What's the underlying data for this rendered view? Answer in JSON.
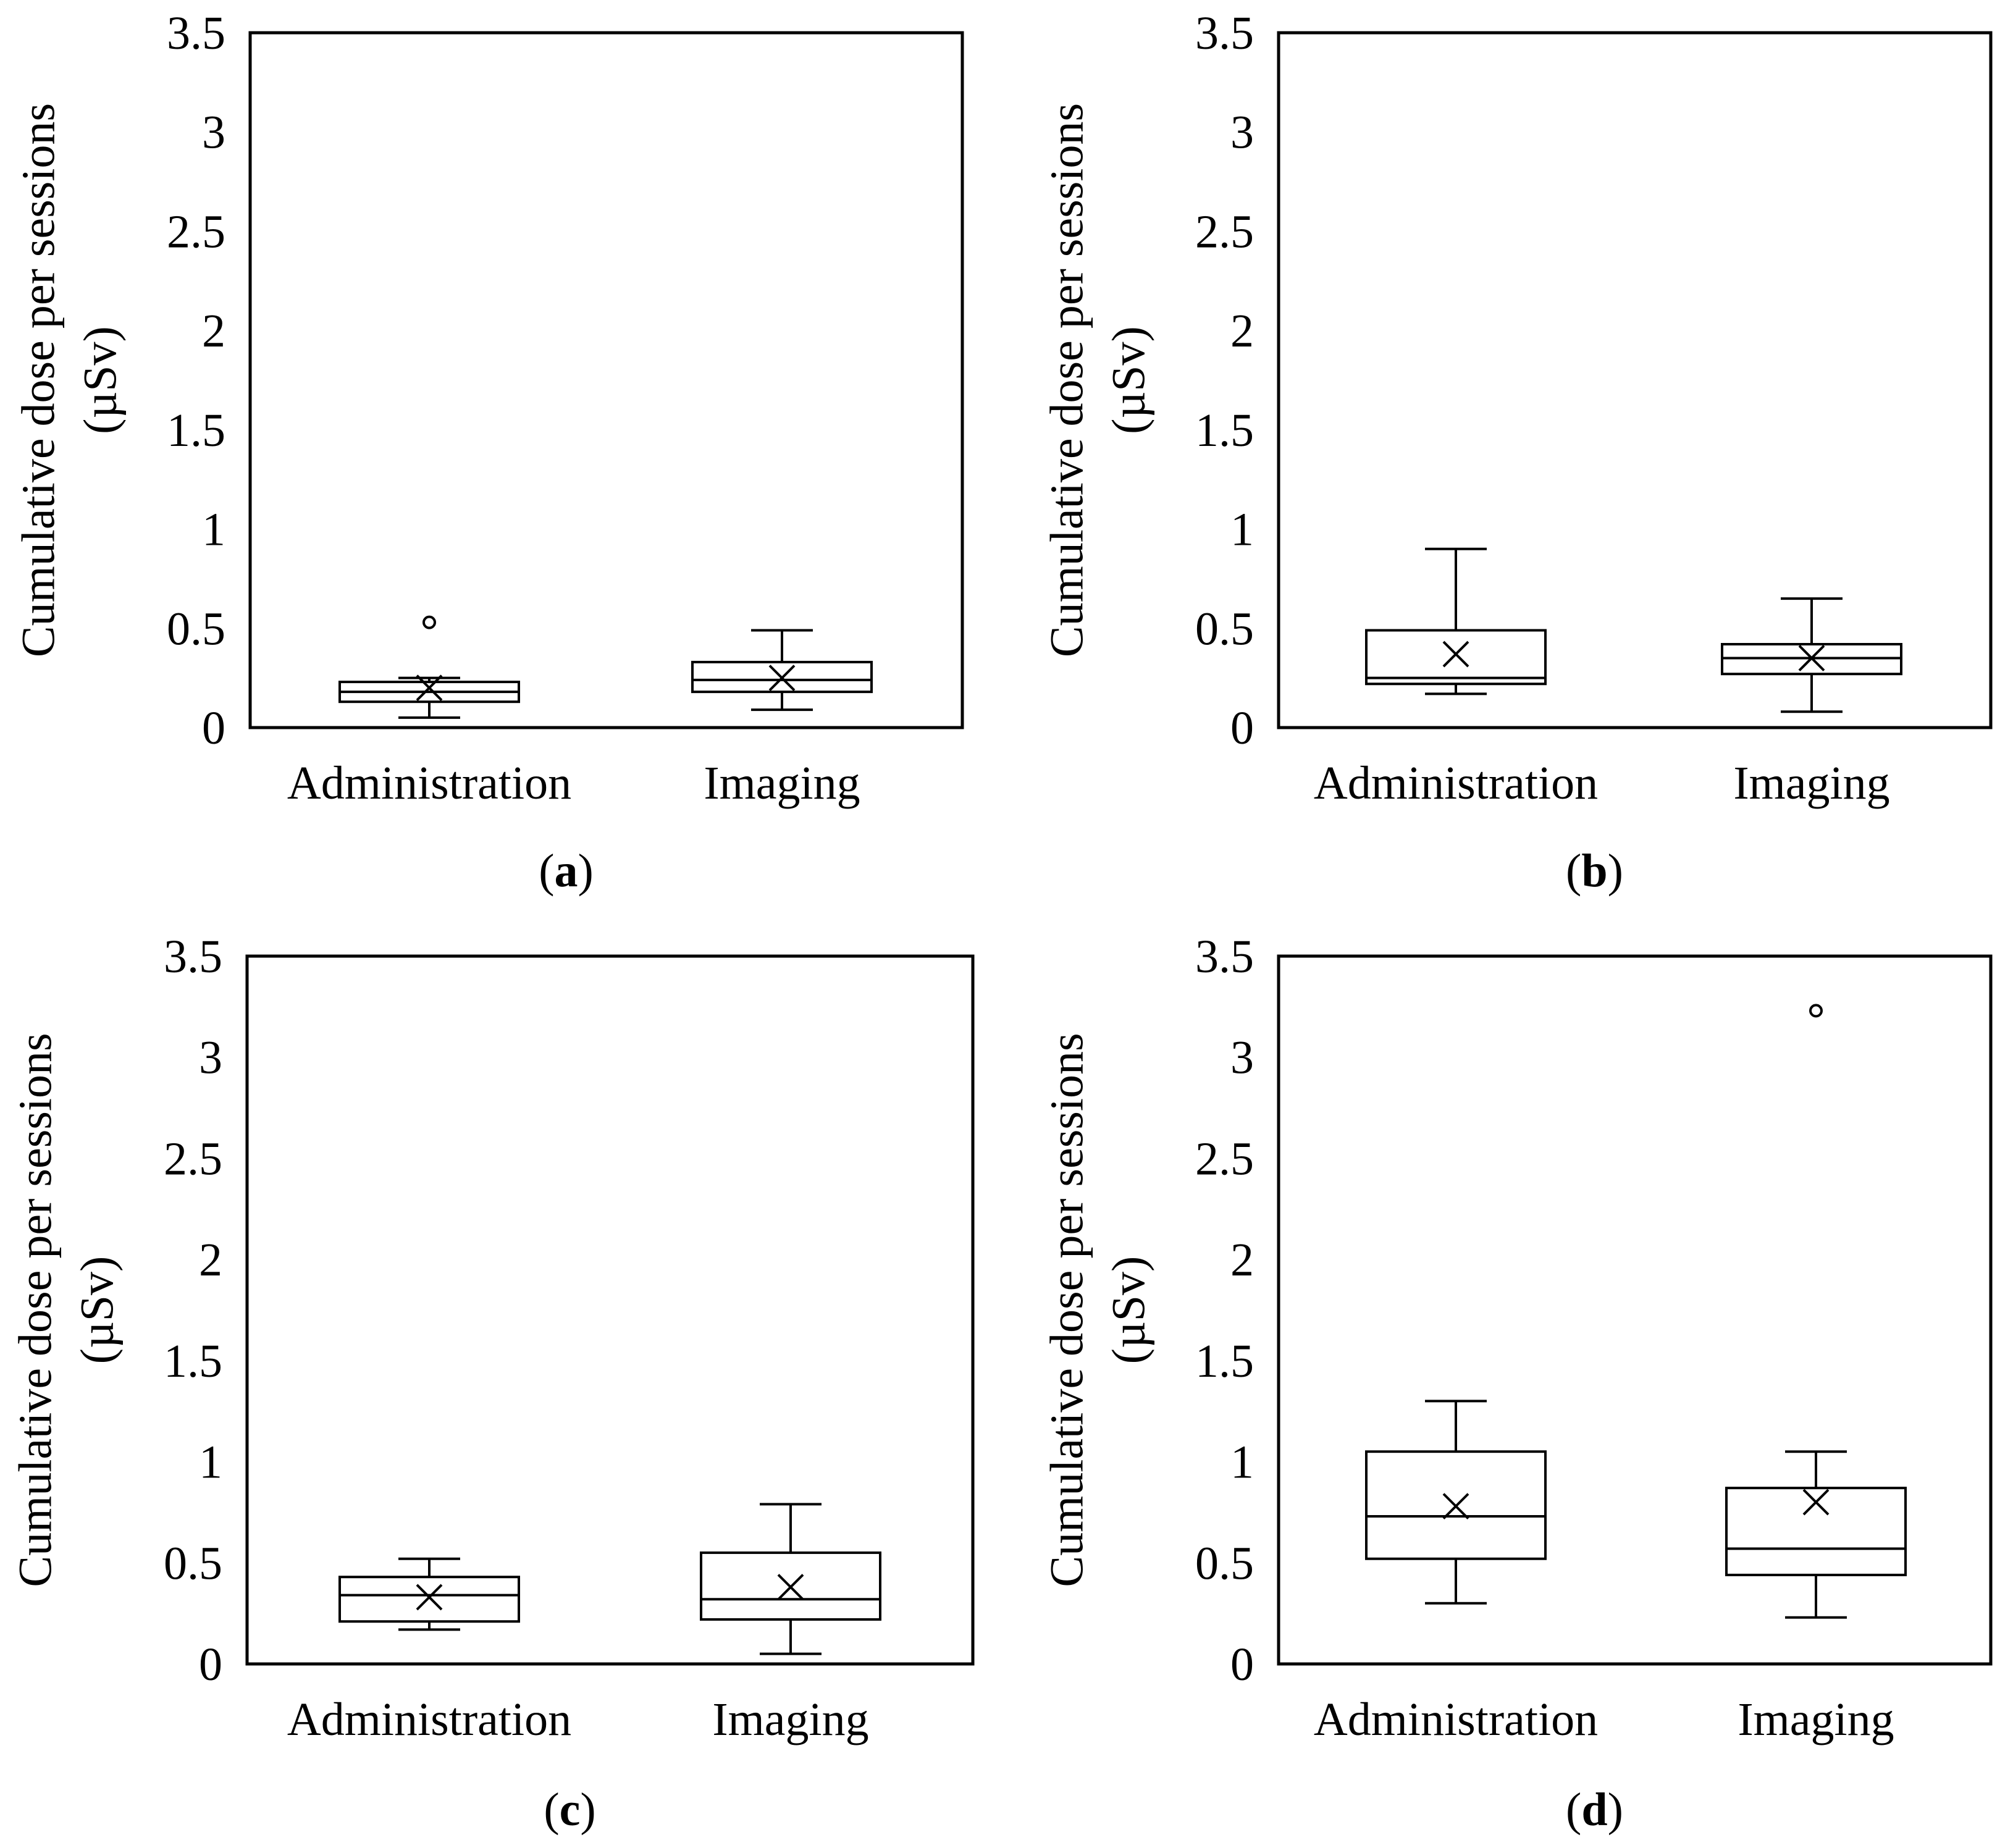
{
  "chart_data": [
    {
      "type": "box",
      "panel_label": "a",
      "caption_open": "(",
      "caption_close": ")",
      "ylabel_line1": "Cumulative dose per sessions",
      "ylabel_line2": "(µSv)",
      "ylim": [
        0,
        3.5
      ],
      "yticks": [
        {
          "value": 0,
          "label": "0"
        },
        {
          "value": 0.5,
          "label": "0.5"
        },
        {
          "value": 1,
          "label": "1"
        },
        {
          "value": 1.5,
          "label": "1.5"
        },
        {
          "value": 2,
          "label": "2"
        },
        {
          "value": 2.5,
          "label": "2.5"
        },
        {
          "value": 3,
          "label": "3"
        },
        {
          "value": 3.5,
          "label": "3.5"
        }
      ],
      "categories": [
        "Administration",
        "Imaging"
      ],
      "boxes": [
        {
          "category": "Administration",
          "whisker_low": 0.05,
          "q1": 0.13,
          "median": 0.18,
          "q3": 0.23,
          "whisker_high": 0.25,
          "mean": 0.2,
          "outliers": [
            0.53
          ]
        },
        {
          "category": "Imaging",
          "whisker_low": 0.09,
          "q1": 0.18,
          "median": 0.24,
          "q3": 0.33,
          "whisker_high": 0.49,
          "mean": 0.25,
          "outliers": []
        }
      ]
    },
    {
      "type": "box",
      "panel_label": "b",
      "caption_open": "(",
      "caption_close": ")",
      "ylabel_line1": "Cumulative dose per sessions",
      "ylabel_line2": "(µSv)",
      "ylim": [
        0,
        3.5
      ],
      "yticks": [
        {
          "value": 0,
          "label": "0"
        },
        {
          "value": 0.5,
          "label": "0.5"
        },
        {
          "value": 1,
          "label": "1"
        },
        {
          "value": 1.5,
          "label": "1.5"
        },
        {
          "value": 2,
          "label": "2"
        },
        {
          "value": 2.5,
          "label": "2.5"
        },
        {
          "value": 3,
          "label": "3"
        },
        {
          "value": 3.5,
          "label": "3.5"
        }
      ],
      "categories": [
        "Administration",
        "Imaging"
      ],
      "boxes": [
        {
          "category": "Administration",
          "whisker_low": 0.17,
          "q1": 0.22,
          "median": 0.25,
          "q3": 0.49,
          "whisker_high": 0.9,
          "mean": 0.37,
          "outliers": []
        },
        {
          "category": "Imaging",
          "whisker_low": 0.08,
          "q1": 0.27,
          "median": 0.35,
          "q3": 0.42,
          "whisker_high": 0.65,
          "mean": 0.35,
          "outliers": []
        }
      ]
    },
    {
      "type": "box",
      "panel_label": "c",
      "caption_open": "(",
      "caption_close": ")",
      "ylabel_line1": "Cumulative dose per sessions",
      "ylabel_line2": "(µSv)",
      "ylim": [
        0,
        3.5
      ],
      "yticks": [
        {
          "value": 0,
          "label": "0"
        },
        {
          "value": 0.5,
          "label": "0.5"
        },
        {
          "value": 1,
          "label": "1"
        },
        {
          "value": 1.5,
          "label": "1.5"
        },
        {
          "value": 2,
          "label": "2"
        },
        {
          "value": 2.5,
          "label": "2.5"
        },
        {
          "value": 3,
          "label": "3"
        },
        {
          "value": 3.5,
          "label": "3.5"
        }
      ],
      "categories": [
        "Administration",
        "Imaging"
      ],
      "boxes": [
        {
          "category": "Administration",
          "whisker_low": 0.17,
          "q1": 0.21,
          "median": 0.34,
          "q3": 0.43,
          "whisker_high": 0.52,
          "mean": 0.33,
          "outliers": []
        },
        {
          "category": "Imaging",
          "whisker_low": 0.05,
          "q1": 0.22,
          "median": 0.32,
          "q3": 0.55,
          "whisker_high": 0.79,
          "mean": 0.38,
          "outliers": []
        }
      ]
    },
    {
      "type": "box",
      "panel_label": "d",
      "caption_open": "(",
      "caption_close": ")",
      "ylabel_line1": "Cumulative dose per sessions",
      "ylabel_line2": "(µSv)",
      "ylim": [
        0,
        3.5
      ],
      "yticks": [
        {
          "value": 0,
          "label": "0"
        },
        {
          "value": 0.5,
          "label": "0.5"
        },
        {
          "value": 1,
          "label": "1"
        },
        {
          "value": 1.5,
          "label": "1.5"
        },
        {
          "value": 2,
          "label": "2"
        },
        {
          "value": 2.5,
          "label": "2.5"
        },
        {
          "value": 3,
          "label": "3"
        },
        {
          "value": 3.5,
          "label": "3.5"
        }
      ],
      "categories": [
        "Administration",
        "Imaging"
      ],
      "boxes": [
        {
          "category": "Administration",
          "whisker_low": 0.3,
          "q1": 0.52,
          "median": 0.73,
          "q3": 1.05,
          "whisker_high": 1.3,
          "mean": 0.78,
          "outliers": []
        },
        {
          "category": "Imaging",
          "whisker_low": 0.23,
          "q1": 0.44,
          "median": 0.57,
          "q3": 0.87,
          "whisker_high": 1.05,
          "mean": 0.8,
          "outliers": [
            3.23
          ]
        }
      ]
    }
  ]
}
